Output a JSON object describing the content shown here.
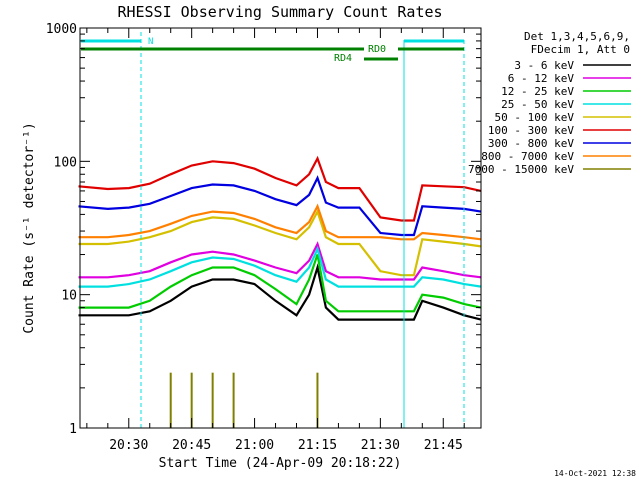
{
  "chart_data": {
    "type": "line",
    "title": "RHESSI Observing Summary Count Rates",
    "xlabel": "Start Time (24-Apr-09 20:18:22)",
    "ylabel": "Count Rate (s⁻¹ detector⁻¹)",
    "yscale": "log",
    "ylim": [
      1,
      1000
    ],
    "xlim": [
      "20:18:22",
      "21:54:00"
    ],
    "x_ticks": [
      "20:30",
      "20:45",
      "21:00",
      "21:15",
      "21:30",
      "21:45"
    ],
    "y_ticks": [
      "1",
      "10",
      "100",
      "1000"
    ],
    "grid": false,
    "legend_position": "right",
    "legend_header": [
      "Det 1,3,4,5,6,9,",
      "FDecim 1, Att 0"
    ],
    "footer": "14-Oct-2021 12:38",
    "series": [
      {
        "name": "3 - 6 keV",
        "color": "#000000",
        "x": [
          "20:18",
          "20:25",
          "20:30",
          "20:35",
          "20:40",
          "20:45",
          "20:50",
          "20:55",
          "21:00",
          "21:05",
          "21:10",
          "21:13",
          "21:15",
          "21:17",
          "21:20",
          "21:25",
          "21:30",
          "21:35",
          "21:38",
          "21:40",
          "21:45",
          "21:50",
          "21:54"
        ],
        "values": [
          7,
          7,
          7,
          7.5,
          9,
          11.5,
          13,
          13,
          12,
          9,
          7,
          10,
          16,
          8,
          6.5,
          6.5,
          6.5,
          6.5,
          6.5,
          9,
          8,
          7,
          6.5
        ]
      },
      {
        "name": "6 - 12 keV",
        "color": "#e000e0",
        "x": [
          "20:18",
          "20:25",
          "20:30",
          "20:35",
          "20:40",
          "20:45",
          "20:50",
          "20:55",
          "21:00",
          "21:05",
          "21:10",
          "21:13",
          "21:15",
          "21:17",
          "21:20",
          "21:25",
          "21:30",
          "21:35",
          "21:38",
          "21:40",
          "21:45",
          "21:50",
          "21:54"
        ],
        "values": [
          13.5,
          13.5,
          14,
          15,
          17.5,
          20,
          21,
          20,
          18,
          16,
          14.5,
          18,
          24,
          15,
          13.5,
          13.5,
          13,
          13,
          13,
          16,
          15,
          14,
          13.5
        ]
      },
      {
        "name": "12 - 25 keV",
        "color": "#00cc00",
        "x": [
          "20:18",
          "20:25",
          "20:30",
          "20:35",
          "20:40",
          "20:45",
          "20:50",
          "20:55",
          "21:00",
          "21:05",
          "21:10",
          "21:13",
          "21:15",
          "21:17",
          "21:20",
          "21:25",
          "21:30",
          "21:35",
          "21:38",
          "21:40",
          "21:45",
          "21:50",
          "21:54"
        ],
        "values": [
          8,
          8,
          8,
          9,
          11.5,
          14,
          16,
          16,
          14,
          11,
          8.5,
          13,
          20,
          9,
          7.5,
          7.5,
          7.5,
          7.5,
          7.5,
          10,
          9.5,
          8.5,
          8
        ]
      },
      {
        "name": "25 - 50 keV",
        "color": "#00e0e0",
        "x": [
          "20:18",
          "20:25",
          "20:30",
          "20:35",
          "20:40",
          "20:45",
          "20:50",
          "20:55",
          "21:00",
          "21:05",
          "21:10",
          "21:13",
          "21:15",
          "21:17",
          "21:20",
          "21:25",
          "21:30",
          "21:35",
          "21:38",
          "21:40",
          "21:45",
          "21:50",
          "21:54"
        ],
        "values": [
          11.5,
          11.5,
          12,
          13,
          15,
          17.5,
          19,
          18.5,
          16.5,
          14,
          12.5,
          16,
          22,
          13,
          11.5,
          11.5,
          11.5,
          11.5,
          11.5,
          13.5,
          13,
          12,
          11.5
        ]
      },
      {
        "name": "50 - 100 keV",
        "color": "#d4c000",
        "x": [
          "20:18",
          "20:25",
          "20:30",
          "20:35",
          "20:40",
          "20:45",
          "20:50",
          "20:55",
          "21:00",
          "21:05",
          "21:10",
          "21:13",
          "21:15",
          "21:17",
          "21:20",
          "21:25",
          "21:30",
          "21:35",
          "21:38",
          "21:40",
          "21:45",
          "21:50",
          "21:54"
        ],
        "values": [
          24,
          24,
          25,
          27,
          30,
          35,
          38,
          37,
          33,
          29,
          26,
          32,
          42,
          27,
          24,
          24,
          15,
          14,
          14,
          26,
          25,
          24,
          23
        ]
      },
      {
        "name": "100 - 300 keV",
        "color": "#e00000",
        "x": [
          "20:18",
          "20:25",
          "20:30",
          "20:35",
          "20:40",
          "20:45",
          "20:50",
          "20:55",
          "21:00",
          "21:05",
          "21:10",
          "21:13",
          "21:15",
          "21:17",
          "21:20",
          "21:25",
          "21:30",
          "21:35",
          "21:38",
          "21:40",
          "21:45",
          "21:50",
          "21:54"
        ],
        "values": [
          65,
          62,
          63,
          68,
          80,
          93,
          100,
          97,
          88,
          75,
          66,
          80,
          105,
          70,
          63,
          63,
          38,
          36,
          36,
          66,
          65,
          64,
          60
        ]
      },
      {
        "name": "300 - 800 keV",
        "color": "#0000e0",
        "x": [
          "20:18",
          "20:25",
          "20:30",
          "20:35",
          "20:40",
          "20:45",
          "20:50",
          "20:55",
          "21:00",
          "21:05",
          "21:10",
          "21:13",
          "21:15",
          "21:17",
          "21:20",
          "21:25",
          "21:30",
          "21:35",
          "21:38",
          "21:40",
          "21:45",
          "21:50",
          "21:54"
        ],
        "values": [
          46,
          44,
          45,
          48,
          55,
          63,
          67,
          66,
          60,
          52,
          47,
          56,
          75,
          49,
          45,
          45,
          29,
          28,
          28,
          46,
          45,
          44,
          42
        ]
      },
      {
        "name": "800 - 7000 keV",
        "color": "#ff8000",
        "x": [
          "20:18",
          "20:25",
          "20:30",
          "20:35",
          "20:40",
          "20:45",
          "20:50",
          "20:55",
          "21:00",
          "21:05",
          "21:10",
          "21:13",
          "21:15",
          "21:17",
          "21:20",
          "21:25",
          "21:30",
          "21:35",
          "21:38",
          "21:40",
          "21:45",
          "21:50",
          "21:54"
        ],
        "values": [
          27,
          27,
          28,
          30,
          34,
          39,
          42,
          41,
          37,
          32,
          29,
          35,
          46,
          30,
          27,
          27,
          27,
          26,
          26,
          29,
          28,
          27,
          26
        ]
      },
      {
        "name": "7000 - 15000 keV",
        "color": "#808000",
        "x": [
          "20:40",
          "20:45",
          "20:50",
          "20:55",
          "21:15"
        ],
        "values": [
          2.6,
          2.6,
          2.6,
          2.6,
          2.6
        ]
      }
    ],
    "annotations": [
      {
        "label": "N",
        "color": "#00e0e0"
      },
      {
        "label": "RD0",
        "color": "#008000"
      },
      {
        "label": "RD4",
        "color": "#008000"
      }
    ]
  }
}
